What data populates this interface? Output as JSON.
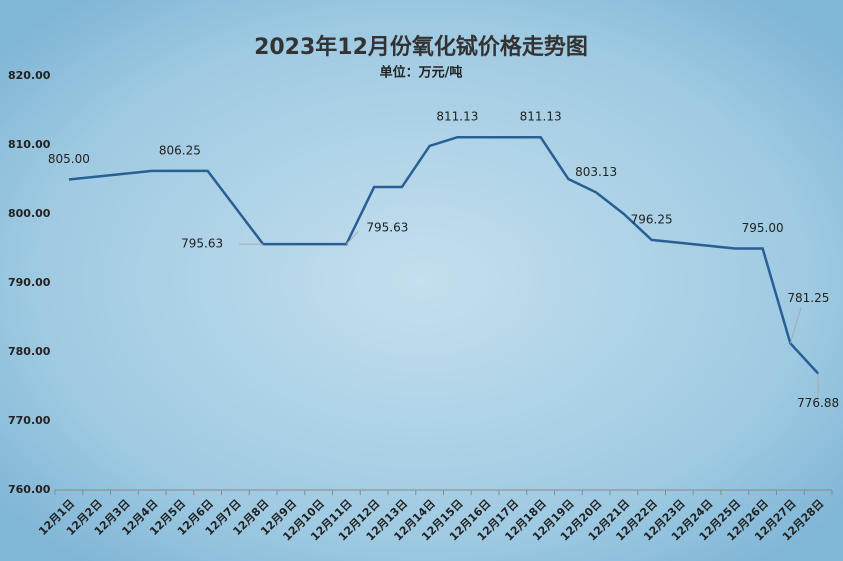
{
  "chart_data": {
    "type": "line",
    "title": "2023年12月份氧化铽价格走势图",
    "subtitle": "单位：万元/吨",
    "categories": [
      "12月1日",
      "12月2日",
      "12月3日",
      "12月4日",
      "12月5日",
      "12月6日",
      "12月7日",
      "12月8日",
      "12月9日",
      "12月10日",
      "12月11日",
      "12月12日",
      "12月13日",
      "12月14日",
      "12月15日",
      "12月16日",
      "12月17日",
      "12月18日",
      "12月19日",
      "12月20日",
      "12月21日",
      "12月22日",
      "12月23日",
      "12月24日",
      "12月25日",
      "12月26日",
      "12月27日",
      "12月28日"
    ],
    "series": [
      {
        "name": "氧化铽价格",
        "color": "#2a5f95",
        "values": [
          805,
          805.42,
          805.83,
          806.25,
          806.25,
          806.25,
          800.94,
          795.63,
          795.63,
          795.63,
          795.63,
          803.91,
          803.91,
          809.86,
          811.13,
          811.13,
          811.13,
          811.13,
          805.07,
          803.13,
          800,
          796.25,
          795.83,
          795.42,
          795,
          795,
          781.25,
          776.88
        ],
        "value_labels": [
          "805.00",
          null,
          null,
          null,
          "806.25",
          null,
          null,
          "795.63",
          null,
          null,
          "795.63",
          null,
          null,
          null,
          "811.13",
          null,
          null,
          "811.13",
          null,
          "803.13",
          null,
          "796.25",
          null,
          null,
          null,
          "795.00",
          "781.25",
          "776.88"
        ]
      }
    ],
    "ylim": [
      760,
      820
    ],
    "yticks": [
      {
        "value": 760,
        "label": "760.00"
      },
      {
        "value": 770,
        "label": "770.00"
      },
      {
        "value": 780,
        "label": "780.00"
      },
      {
        "value": 790,
        "label": "790.00"
      },
      {
        "value": 800,
        "label": "800.00"
      },
      {
        "value": 810,
        "label": "810.00"
      },
      {
        "value": 820,
        "label": "820.00"
      }
    ],
    "grid": false
  }
}
